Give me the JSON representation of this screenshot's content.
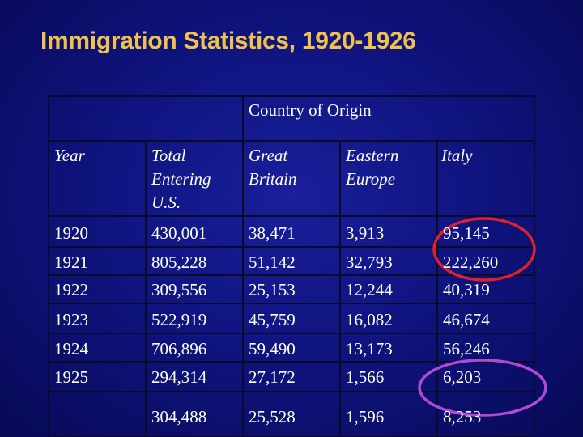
{
  "title": "Immigration Statistics, 1920-1926",
  "table": {
    "group_header": "Country of Origin",
    "headers": {
      "year": "Year",
      "total": [
        "Total",
        "Entering",
        "U.S."
      ],
      "great_britain": [
        "Great",
        "Britain"
      ],
      "eastern_europe": [
        "Eastern",
        "Europe"
      ],
      "italy": "Italy"
    },
    "rows": [
      {
        "year": "1920",
        "total": "430,001",
        "great_britain": "38,471",
        "eastern_europe": "3,913",
        "italy": "95,145"
      },
      {
        "year": "1921",
        "total": "805,228",
        "great_britain": "51,142",
        "eastern_europe": "32,793",
        "italy": "222,260"
      },
      {
        "year": "1922",
        "total": "309,556",
        "great_britain": "25,153",
        "eastern_europe": "12,244",
        "italy": "40,319"
      },
      {
        "year": "1923",
        "total": "522,919",
        "great_britain": "45,759",
        "eastern_europe": "16,082",
        "italy": "46,674"
      },
      {
        "year": "1924",
        "total": "706,896",
        "great_britain": "59,490",
        "eastern_europe": "13,173",
        "italy": "56,246"
      },
      {
        "year": "1925",
        "total": "294,314",
        "great_britain": "27,172",
        "eastern_europe": "1,566",
        "italy": "6,203"
      },
      {
        "year": "",
        "total": "304,488",
        "great_britain": "25,528",
        "eastern_europe": "1,596",
        "italy": "8,253"
      }
    ]
  },
  "annotations": {
    "red_ellipse_color": "#e0202a",
    "purple_ellipse_color": "#b048d8"
  },
  "colors": {
    "background": "#0f1480",
    "title": "#f0c24a",
    "grid": "#0a0a2a"
  }
}
